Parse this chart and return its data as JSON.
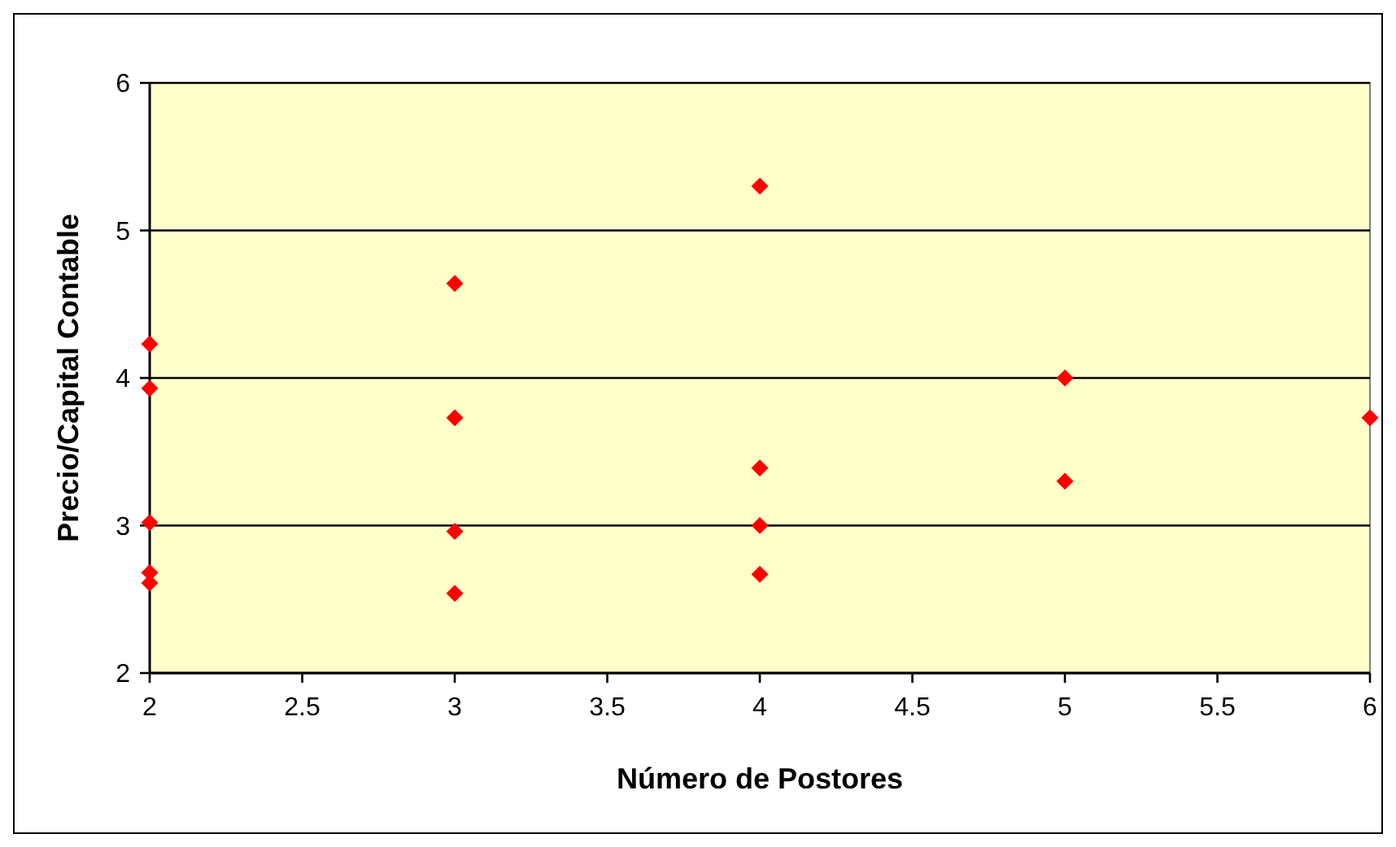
{
  "chart_data": {
    "type": "scatter",
    "xlabel": "Número de Postores",
    "ylabel": "Precio/Capital Contable",
    "x": [
      2,
      2,
      2,
      2,
      2,
      3,
      3,
      3,
      3,
      4,
      4,
      4,
      4,
      5,
      5,
      6
    ],
    "series": [
      {
        "color": "#ff0000",
        "values": [
          4.23,
          3.93,
          3.02,
          2.68,
          2.61,
          4.64,
          3.73,
          2.96,
          2.54,
          5.3,
          3.39,
          3.0,
          2.67,
          4.0,
          3.3,
          3.73
        ]
      }
    ],
    "xlim": [
      2,
      6
    ],
    "xticks": [
      2,
      2.5,
      3,
      3.5,
      4,
      4.5,
      5,
      5.5,
      6
    ],
    "ylim": [
      2,
      6
    ],
    "yticks": [
      2,
      3,
      4,
      5,
      6
    ],
    "grid": "y",
    "marker": "diamond"
  }
}
